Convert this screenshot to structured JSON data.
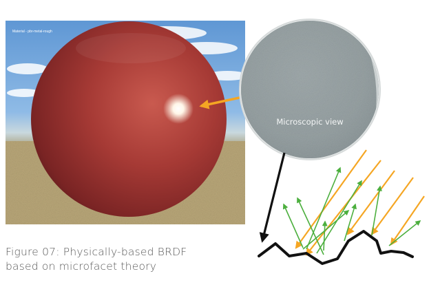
{
  "render": {
    "material_label": "Material - pbr-metal-rough"
  },
  "diagram": {
    "magnifier_label": "Microscopic view"
  },
  "caption": {
    "line1": "Figure 07: Physically-based BRDF",
    "line2": "based on microfacet theory"
  },
  "colors": {
    "sphere": "#a43a35",
    "incident_ray": "#f5a623",
    "reflected_ray": "#4caf3e",
    "surface": "#111111",
    "magnifier_fill": "#9aa4a6"
  }
}
